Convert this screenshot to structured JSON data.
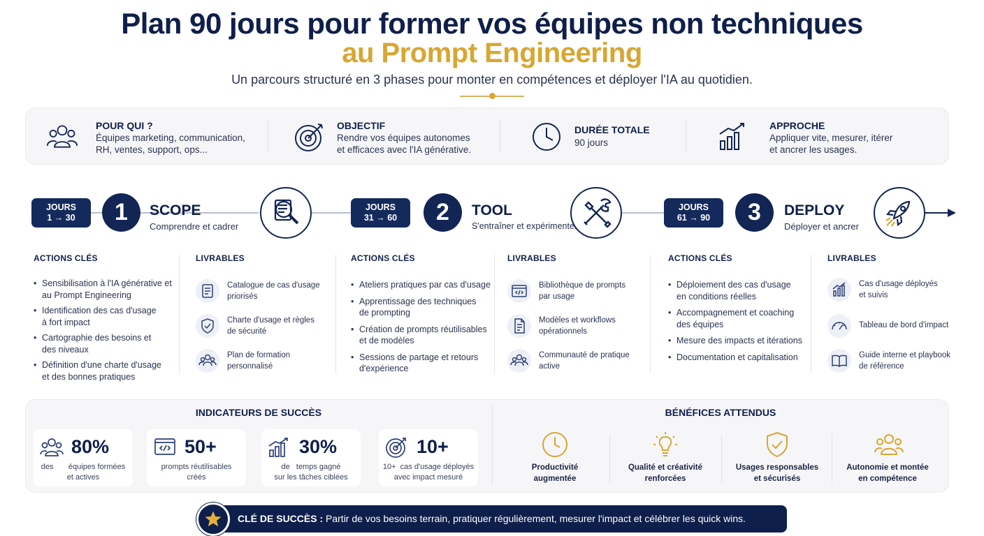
{
  "header": {
    "title_line1": "Plan 90 jours pour former vos équipes non techniques",
    "title_line2": "au Prompt Engineering",
    "subtitle": "Un parcours structuré en 3 phases pour monter en compétences et déployer l'IA au quotidien."
  },
  "info": [
    {
      "icon": "users-icon",
      "title": "POUR QUI ?",
      "line1": "Équipes marketing, communication,",
      "line2": "RH, ventes, support, ops..."
    },
    {
      "icon": "target-icon",
      "title": "OBJECTIF",
      "line1": "Rendre vos équipes autonomes",
      "line2": "et efficaces avec l'IA générative."
    },
    {
      "icon": "clock-icon",
      "title": "DURÉE TOTALE",
      "line1": "90 jours",
      "line2": ""
    },
    {
      "icon": "chart-icon",
      "title": "APPROCHE",
      "line1": "Appliquer vite, mesurer, itérer",
      "line2": "et ancrer les usages."
    }
  ],
  "phases": [
    {
      "days_line1": "JOURS",
      "days_line2": "1 → 30",
      "number": "1",
      "name": "SCOPE",
      "subtitle": "Comprendre et cadrer",
      "icon": "magnifier-document-icon",
      "actions_title": "ACTIONS CLÉS",
      "actions": [
        [
          "Sensibilisation à l'IA générative et",
          "au Prompt Engineering"
        ],
        [
          "Identification des cas d'usage",
          "à fort impact"
        ],
        [
          "Cartographie des besoins et",
          "des niveaux"
        ],
        [
          "Définition d'une charte d'usage",
          "et des bonnes pratiques"
        ]
      ],
      "deliverables_title": "LIVRABLES",
      "deliverables": [
        {
          "icon": "catalog-icon",
          "line1": "Catalogue de cas d'usage",
          "line2": "priorisés"
        },
        {
          "icon": "shield-check-icon",
          "line1": "Charte d'usage et règles",
          "line2": "de sécurité"
        },
        {
          "icon": "group-icon",
          "line1": "Plan de formation",
          "line2": "personnalisé"
        }
      ]
    },
    {
      "days_line1": "JOURS",
      "days_line2": "31 → 60",
      "number": "2",
      "name": "TOOL",
      "subtitle": "S'entraîner et expérimenter",
      "icon": "tools-icon",
      "actions_title": "ACTIONS CLÉS",
      "actions": [
        [
          "Ateliers pratiques par cas d'usage"
        ],
        [
          "Apprentissage des techniques",
          "de prompting"
        ],
        [
          "Création de prompts réutilisables",
          "et de modèles"
        ],
        [
          "Sessions de partage et retours",
          "d'expérience"
        ]
      ],
      "deliverables_title": "LIVRABLES",
      "deliverables": [
        {
          "icon": "code-window-icon",
          "line1": "Bibliothèque de prompts",
          "line2": "par usage"
        },
        {
          "icon": "document-icon",
          "line1": "Modèles et workflows",
          "line2": "opérationnels"
        },
        {
          "icon": "community-icon",
          "line1": "Communauté de pratique",
          "line2": "active"
        }
      ]
    },
    {
      "days_line1": "JOURS",
      "days_line2": "61 → 90",
      "number": "3",
      "name": "DEPLOY",
      "subtitle": "Déployer et ancrer",
      "icon": "rocket-icon",
      "actions_title": "ACTIONS CLÉS",
      "actions": [
        [
          "Déploiement des cas d'usage",
          "en conditions réelles"
        ],
        [
          "Accompagnement et coaching",
          "des équipes"
        ],
        [
          "Mesure des impacts et itérations"
        ],
        [
          "Documentation et capitalisation"
        ]
      ],
      "deliverables_title": "LIVRABLES",
      "deliverables": [
        {
          "icon": "bar-chart-icon",
          "line1": "Cas d'usage déployés",
          "line2": "et suivis"
        },
        {
          "icon": "gauge-icon",
          "line1": "Tableau de bord d'impact",
          "line2": ""
        },
        {
          "icon": "book-icon",
          "line1": "Guide interne et playbook",
          "line2": "de référence"
        }
      ]
    }
  ],
  "indicators": {
    "title": "INDICATEURS DE SUCCÈS",
    "items": [
      {
        "icon": "users-icon",
        "value": "80%",
        "prefix": "des",
        "line1": "équipes formées",
        "line2": "et actives"
      },
      {
        "icon": "code-window-icon",
        "value": "50+",
        "prefix": "",
        "line1": "prompts réutilisables",
        "line2": "créés"
      },
      {
        "icon": "chart-icon",
        "value": "30%",
        "prefix": "de",
        "line1": "temps gagné",
        "line2": "sur les tâches ciblées"
      },
      {
        "icon": "target-icon",
        "value": "10+",
        "prefix": "10+",
        "line1": "cas d'usage déployés",
        "line2": "avec impact mesuré"
      }
    ]
  },
  "benefits": {
    "title": "BÉNÉFICES ATTENDUS",
    "items": [
      {
        "icon": "clock-icon",
        "line1": "Productivité",
        "line2": "augmentée"
      },
      {
        "icon": "lightbulb-icon",
        "line1": "Qualité et créativité",
        "line2": "renforcées"
      },
      {
        "icon": "shield-check-icon",
        "line1": "Usages responsables",
        "line2": "et sécurisés"
      },
      {
        "icon": "group-icon",
        "line1": "Autonomie et montée",
        "line2": "en compétence"
      }
    ]
  },
  "key": {
    "label": "CLÉ DE SUCCÈS :",
    "text": " Partir de vos besoins terrain, pratiquer régulièrement, mesurer l'impact et célébrer les quick wins."
  },
  "colors": {
    "navy": "#0f1f4b",
    "gold": "#d8a632",
    "band": "#f6f6f8"
  }
}
